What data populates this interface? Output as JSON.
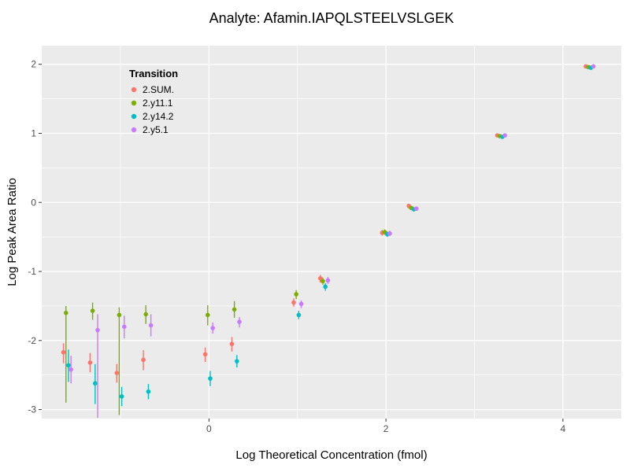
{
  "chart_data": {
    "type": "scatter",
    "title": "Analyte: Afamin.IAPQLSTEELVSLGEK",
    "xlabel": "Log Theoretical Concentration (fmol)",
    "ylabel": "Log Peak Area Ratio",
    "xlim": [
      -1.89,
      4.66
    ],
    "ylim": [
      -3.13,
      2.27
    ],
    "x_major_ticks": [
      0,
      2,
      4
    ],
    "x_minor_ticks": [
      -1,
      1,
      3
    ],
    "y_major_ticks": [
      -3,
      -2,
      -1,
      0,
      1,
      2
    ],
    "y_minor_ticks": [
      -2.5,
      -1.5,
      -0.5,
      0.5,
      1.5
    ],
    "grid": true,
    "panel_bg": "#EBEBEB",
    "grid_color": "#FFFFFF",
    "tick_color": "#333333",
    "legend": {
      "title": "Transition",
      "position": "inside-top-left"
    },
    "point_format": "[x, y, ymin, ymax]",
    "series": [
      {
        "name": "2.SUM.",
        "color": "#F8766D",
        "points": [
          [
            -1.602,
            -2.17,
            -2.33,
            -2.04
          ],
          [
            -1.301,
            -2.32,
            -2.46,
            -2.18
          ],
          [
            -1.0,
            -2.47,
            -2.61,
            -2.34
          ],
          [
            -0.699,
            -2.28,
            -2.43,
            -2.14
          ],
          [
            0.0,
            -2.2,
            -2.31,
            -2.1
          ],
          [
            0.301,
            -2.05,
            -2.16,
            -1.95
          ],
          [
            1.0,
            -1.45,
            -1.51,
            -1.39
          ],
          [
            1.301,
            -1.1,
            -1.16,
            -1.05
          ],
          [
            2.0,
            -0.44,
            -0.48,
            -0.4
          ],
          [
            2.301,
            -0.05,
            -0.09,
            -0.02
          ],
          [
            3.301,
            0.97,
            0.95,
            0.99
          ],
          [
            4.301,
            1.97,
            1.95,
            1.99
          ]
        ]
      },
      {
        "name": "2.y11.1",
        "color": "#7CAE00",
        "points": [
          [
            -1.602,
            -1.6,
            -2.9,
            -1.5
          ],
          [
            -1.301,
            -1.57,
            -1.7,
            -1.45
          ],
          [
            -1.0,
            -1.63,
            -3.08,
            -1.52
          ],
          [
            -0.699,
            -1.62,
            -1.76,
            -1.49
          ],
          [
            0.0,
            -1.63,
            -1.78,
            -1.49
          ],
          [
            0.301,
            -1.55,
            -1.67,
            -1.43
          ],
          [
            1.0,
            -1.33,
            -1.4,
            -1.27
          ],
          [
            1.301,
            -1.14,
            -1.19,
            -1.09
          ],
          [
            2.0,
            -0.43,
            -0.47,
            -0.39
          ],
          [
            2.301,
            -0.08,
            -0.11,
            -0.05
          ],
          [
            3.301,
            0.96,
            0.94,
            0.98
          ],
          [
            4.301,
            1.96,
            1.94,
            1.98
          ]
        ]
      },
      {
        "name": "2.y14.2",
        "color": "#00BFC4",
        "points": [
          [
            -1.602,
            -2.36,
            -2.6,
            -2.13
          ],
          [
            -1.301,
            -2.62,
            -2.92,
            -2.34
          ],
          [
            -1.0,
            -2.81,
            -2.95,
            -2.67
          ],
          [
            -0.699,
            -2.74,
            -2.85,
            -2.63
          ],
          [
            0.0,
            -2.55,
            -2.66,
            -2.44
          ],
          [
            0.301,
            -2.3,
            -2.39,
            -2.21
          ],
          [
            1.0,
            -1.63,
            -1.69,
            -1.57
          ],
          [
            1.301,
            -1.22,
            -1.28,
            -1.17
          ],
          [
            2.0,
            -0.46,
            -0.5,
            -0.42
          ],
          [
            2.301,
            -0.1,
            -0.13,
            -0.07
          ],
          [
            3.301,
            0.95,
            0.93,
            0.97
          ],
          [
            4.301,
            1.95,
            1.93,
            1.97
          ]
        ]
      },
      {
        "name": "2.y5.1",
        "color": "#C77CFF",
        "points": [
          [
            -1.602,
            -2.42,
            -2.62,
            -2.22
          ],
          [
            -1.301,
            -1.85,
            -3.12,
            -1.62
          ],
          [
            -1.0,
            -1.8,
            -1.97,
            -1.64
          ],
          [
            -0.699,
            -1.78,
            -1.94,
            -1.62
          ],
          [
            0.0,
            -1.82,
            -1.9,
            -1.74
          ],
          [
            0.301,
            -1.73,
            -1.81,
            -1.66
          ],
          [
            1.0,
            -1.47,
            -1.53,
            -1.42
          ],
          [
            1.301,
            -1.13,
            -1.18,
            -1.08
          ],
          [
            2.0,
            -0.45,
            -0.49,
            -0.41
          ],
          [
            2.301,
            -0.09,
            -0.12,
            -0.06
          ],
          [
            3.301,
            0.97,
            0.95,
            0.99
          ],
          [
            4.301,
            1.97,
            1.95,
            1.99
          ]
        ]
      }
    ]
  }
}
